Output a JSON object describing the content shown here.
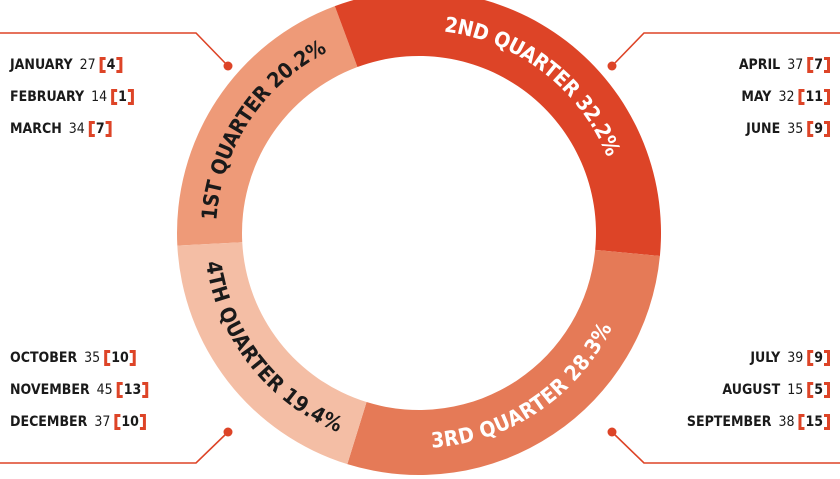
{
  "chart_data": {
    "type": "pie",
    "donut": true,
    "categories": [
      "1ST QUARTER",
      "2ND QUARTER",
      "3RD QUARTER",
      "4TH QUARTER"
    ],
    "values": [
      20.2,
      32.2,
      28.3,
      19.4
    ],
    "value_labels": [
      "20.2%",
      "32.2%",
      "28.3%",
      "19.4%"
    ],
    "colors": [
      "#ee9a78",
      "#dd4427",
      "#e57a57",
      "#f4bea5"
    ],
    "label_colors": [
      "#1a1a1a",
      "#ffffff",
      "#ffffff",
      "#1a1a1a"
    ],
    "months": [
      {
        "name": "JANUARY",
        "value": 27,
        "count": 4
      },
      {
        "name": "FEBRUARY",
        "value": 14,
        "count": 1
      },
      {
        "name": "MARCH",
        "value": 34,
        "count": 7
      },
      {
        "name": "APRIL",
        "value": 37,
        "count": 7
      },
      {
        "name": "MAY",
        "value": 32,
        "count": 11
      },
      {
        "name": "JUNE",
        "value": 35,
        "count": 9
      },
      {
        "name": "JULY",
        "value": 39,
        "count": 9
      },
      {
        "name": "AUGUST",
        "value": 15,
        "count": 5
      },
      {
        "name": "SEPTEMBER",
        "value": 38,
        "count": 15
      },
      {
        "name": "OCTOBER",
        "value": 35,
        "count": 10
      },
      {
        "name": "NOVEMBER",
        "value": 45,
        "count": 13
      },
      {
        "name": "DECEMBER",
        "value": 37,
        "count": 10
      }
    ]
  }
}
